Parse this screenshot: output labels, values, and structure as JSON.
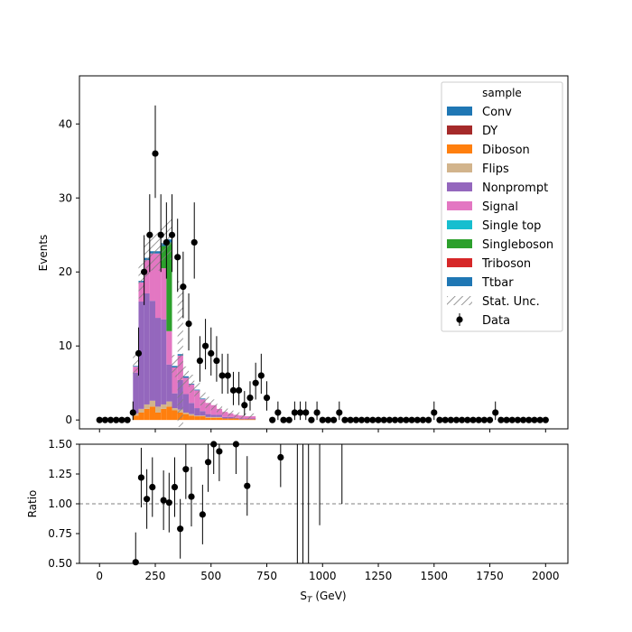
{
  "chart_data": [
    {
      "type": "bar",
      "panel": "main",
      "stacked": true,
      "ylabel": "Events",
      "xlim": [
        -90,
        2100
      ],
      "ylim": [
        -1.2,
        46.5
      ],
      "yticks": [
        0,
        10,
        20,
        30,
        40
      ],
      "bin_width": 25,
      "bin_edges_start": 150,
      "legend": {
        "title": "sample",
        "placement": "top-right",
        "stat_unc_label": "Stat. Unc.",
        "data_label": "Data"
      },
      "colors": {
        "Conv": "#1f77b4",
        "DY": "#a52a2a",
        "Diboson": "#ff7f0e",
        "Flips": "#d2b48c",
        "Nonprompt": "#9467bd",
        "Signal": "#e377c2",
        "Single top": "#17becf",
        "Singleboson": "#2ca02c",
        "Triboson": "#d62728",
        "Ttbar": "#1f77b4"
      },
      "series": [
        {
          "name": "Conv",
          "values": [
            0,
            0,
            0,
            0,
            0,
            0,
            0,
            0,
            0,
            0,
            0,
            0,
            0,
            0,
            0,
            0,
            0,
            0,
            0,
            0,
            0,
            0
          ]
        },
        {
          "name": "DY",
          "values": [
            0,
            0,
            0,
            0,
            0,
            0,
            0,
            0,
            0,
            0,
            0,
            0,
            0,
            0,
            0,
            0,
            0,
            0,
            0,
            0,
            0,
            0
          ]
        },
        {
          "name": "Diboson",
          "values": [
            0.6,
            1.0,
            1.5,
            1.8,
            1.0,
            1.5,
            1.8,
            1.3,
            1.0,
            0.8,
            0.6,
            0.5,
            0.5,
            0.3,
            0.3,
            0.3,
            0.2,
            0.2,
            0.2,
            0.1,
            0.1,
            0.1
          ]
        },
        {
          "name": "Flips",
          "values": [
            0.3,
            0.5,
            0.6,
            0.8,
            0.8,
            0.6,
            0.7,
            0.3,
            0.4,
            0.2,
            0.2,
            0.1,
            0.1,
            0.1,
            0.1,
            0.1,
            0,
            0,
            0,
            0,
            0,
            0
          ]
        },
        {
          "name": "Nonprompt",
          "values": [
            5.5,
            14.5,
            15.0,
            13.5,
            12.0,
            11.5,
            5.0,
            2.0,
            4.0,
            2.5,
            1.5,
            1.0,
            0.6,
            0.4,
            0.3,
            0.3,
            0.2,
            0.2,
            0.1,
            0.1,
            0.1,
            0.1
          ]
        },
        {
          "name": "Signal",
          "values": [
            0.8,
            2.6,
            4.5,
            6.4,
            8.7,
            6.9,
            4.5,
            3.5,
            3.3,
            2.2,
            2.5,
            2.4,
            1.6,
            1.5,
            1.3,
            0.8,
            0.7,
            0.5,
            0.4,
            0.4,
            0.3,
            0.3
          ]
        },
        {
          "name": "Single top",
          "values": [
            0,
            0,
            0,
            0,
            0,
            0,
            0,
            0,
            0,
            0,
            0,
            0,
            0,
            0,
            0,
            0,
            0,
            0,
            0,
            0,
            0,
            0
          ]
        },
        {
          "name": "Singleboson",
          "values": [
            0,
            0,
            0,
            0,
            0,
            3.0,
            12.0,
            0,
            0,
            0,
            0,
            0,
            0,
            0,
            0,
            0,
            0,
            0,
            0,
            0,
            0,
            0
          ]
        },
        {
          "name": "Triboson",
          "values": [
            0,
            0,
            0,
            0,
            0,
            0,
            0,
            0,
            0,
            0,
            0,
            0,
            0,
            0,
            0,
            0,
            0,
            0,
            0,
            0,
            0,
            0
          ]
        },
        {
          "name": "Ttbar",
          "values": [
            0.1,
            0.2,
            0.3,
            0.3,
            0.3,
            0.4,
            0.4,
            0.2,
            0.2,
            0.2,
            0.1,
            0.1,
            0.1,
            0,
            0,
            0,
            0,
            0,
            0,
            0,
            0,
            0
          ]
        }
      ],
      "data": {
        "name": "Data",
        "x": [
          0,
          25,
          50,
          75,
          100,
          125,
          150,
          175,
          200,
          225,
          250,
          275,
          300,
          325,
          350,
          375,
          400,
          425,
          450,
          475,
          500,
          525,
          550,
          575,
          600,
          625,
          650,
          675,
          700,
          725,
          750,
          775,
          800,
          825,
          850,
          875,
          900,
          925,
          950,
          975,
          1000,
          1025,
          1050,
          1075,
          1100,
          1125,
          1150,
          1175,
          1200,
          1225,
          1250,
          1275,
          1300,
          1325,
          1350,
          1375,
          1400,
          1425,
          1450,
          1475,
          1500,
          1525,
          1550,
          1575,
          1600,
          1625,
          1650,
          1675,
          1700,
          1725,
          1750,
          1775,
          1800,
          1825,
          1850,
          1875,
          1900,
          1925,
          1950,
          1975,
          2000
        ],
        "y": [
          0,
          0,
          0,
          0,
          0,
          0,
          1,
          9,
          20,
          25,
          36,
          25,
          24,
          25,
          22,
          18,
          13,
          24,
          8,
          10,
          9,
          8,
          6,
          6,
          4,
          4,
          2,
          3,
          5,
          6,
          3,
          0,
          1,
          0,
          0,
          1,
          1,
          1,
          0,
          1,
          0,
          0,
          0,
          1,
          0,
          0,
          0,
          0,
          0,
          0,
          0,
          0,
          0,
          0,
          0,
          0,
          0,
          0,
          0,
          0,
          1,
          0,
          0,
          0,
          0,
          0,
          0,
          0,
          0,
          0,
          0,
          1,
          0,
          0,
          0,
          0,
          0,
          0,
          0,
          0,
          0
        ]
      }
    },
    {
      "type": "scatter",
      "panel": "ratio",
      "xlabel": "S$_T$ (GeV)",
      "ylabel": "Ratio",
      "xlim": [
        -90,
        2100
      ],
      "ylim": [
        0.5,
        1.5
      ],
      "xticks": [
        0,
        250,
        500,
        750,
        1000,
        1250,
        1500,
        1750,
        2000
      ],
      "yticks": [
        "0.50",
        "0.75",
        "1.00",
        "1.25",
        "1.50"
      ],
      "reference_line": 1.0,
      "points": [
        {
          "x": 162,
          "y": 0.51
        },
        {
          "x": 187,
          "y": 1.22
        },
        {
          "x": 212,
          "y": 1.04
        },
        {
          "x": 237,
          "y": 1.14
        },
        {
          "x": 287,
          "y": 1.03
        },
        {
          "x": 312,
          "y": 1.01
        },
        {
          "x": 337,
          "y": 1.14
        },
        {
          "x": 362,
          "y": 0.79
        },
        {
          "x": 387,
          "y": 1.29
        },
        {
          "x": 412,
          "y": 1.06
        },
        {
          "x": 462,
          "y": 0.91
        },
        {
          "x": 487,
          "y": 1.35
        },
        {
          "x": 512,
          "y": 1.5
        },
        {
          "x": 537,
          "y": 1.44
        },
        {
          "x": 612,
          "y": 1.5
        },
        {
          "x": 662,
          "y": 1.15
        },
        {
          "x": 812,
          "y": 1.39
        }
      ]
    }
  ]
}
